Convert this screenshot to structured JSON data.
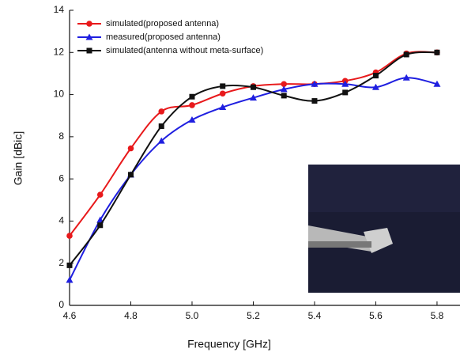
{
  "chart_data": {
    "type": "line",
    "xlabel": "Frequency [GHz]",
    "ylabel": "Gain [dBic]",
    "x": [
      4.6,
      4.7,
      4.8,
      4.9,
      5.0,
      5.1,
      5.2,
      5.3,
      5.4,
      5.5,
      5.6,
      5.7,
      5.8
    ],
    "series": [
      {
        "name": "simulated(proposed antenna)",
        "color": "#e8191b",
        "marker": "circle",
        "values": [
          3.3,
          5.25,
          7.45,
          9.2,
          9.5,
          10.05,
          10.4,
          10.5,
          10.5,
          10.65,
          11.05,
          11.95,
          12.0
        ]
      },
      {
        "name": "measured(proposed antenna)",
        "color": "#1f1fe0",
        "marker": "triangle",
        "values": [
          1.2,
          4.05,
          6.2,
          7.8,
          8.8,
          9.4,
          9.85,
          10.25,
          10.5,
          10.5,
          10.35,
          10.8,
          10.5
        ]
      },
      {
        "name": "simulated(antenna without meta-surface)",
        "color": "#111111",
        "marker": "square",
        "values": [
          1.9,
          3.8,
          6.2,
          8.5,
          9.9,
          10.4,
          10.35,
          9.95,
          9.7,
          10.1,
          10.9,
          11.9,
          12.0
        ]
      }
    ],
    "xlim": [
      4.6,
      5.875
    ],
    "xticks": [
      4.6,
      4.8,
      {
        "value": 5,
        "label": "5.0"
      },
      5.2,
      5.4,
      5.6,
      5.8
    ],
    "ylim": [
      0,
      14
    ],
    "yticks": [
      0,
      2,
      4,
      6,
      8,
      10,
      12,
      14
    ],
    "legend": "upper left"
  }
}
